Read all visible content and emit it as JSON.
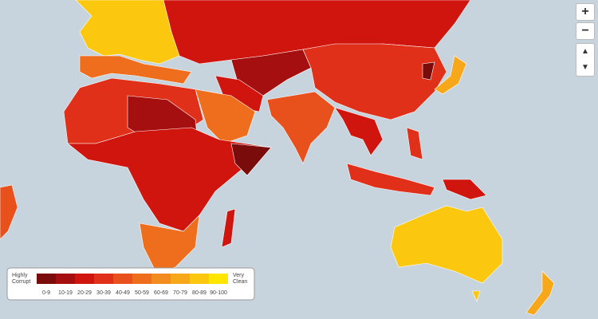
{
  "legend": {
    "low_label_lines": [
      "Highly",
      "Corrupt"
    ],
    "high_label_lines": [
      "Very",
      "Clean"
    ],
    "bins": [
      {
        "label": "0-9",
        "color": "#7a0c0c"
      },
      {
        "label": "10-19",
        "color": "#a50f0f"
      },
      {
        "label": "20-29",
        "color": "#d0150f"
      },
      {
        "label": "30-39",
        "color": "#e0301a"
      },
      {
        "label": "40-49",
        "color": "#e8501c"
      },
      {
        "label": "50-59",
        "color": "#ee6e1e"
      },
      {
        "label": "60-69",
        "color": "#f28c1e"
      },
      {
        "label": "70-79",
        "color": "#f7a81a"
      },
      {
        "label": "80-89",
        "color": "#fbc70f"
      },
      {
        "label": "90-100",
        "color": "#ffe600"
      }
    ]
  },
  "controls": {
    "zoom_in": "+",
    "zoom_out": "−"
  }
}
